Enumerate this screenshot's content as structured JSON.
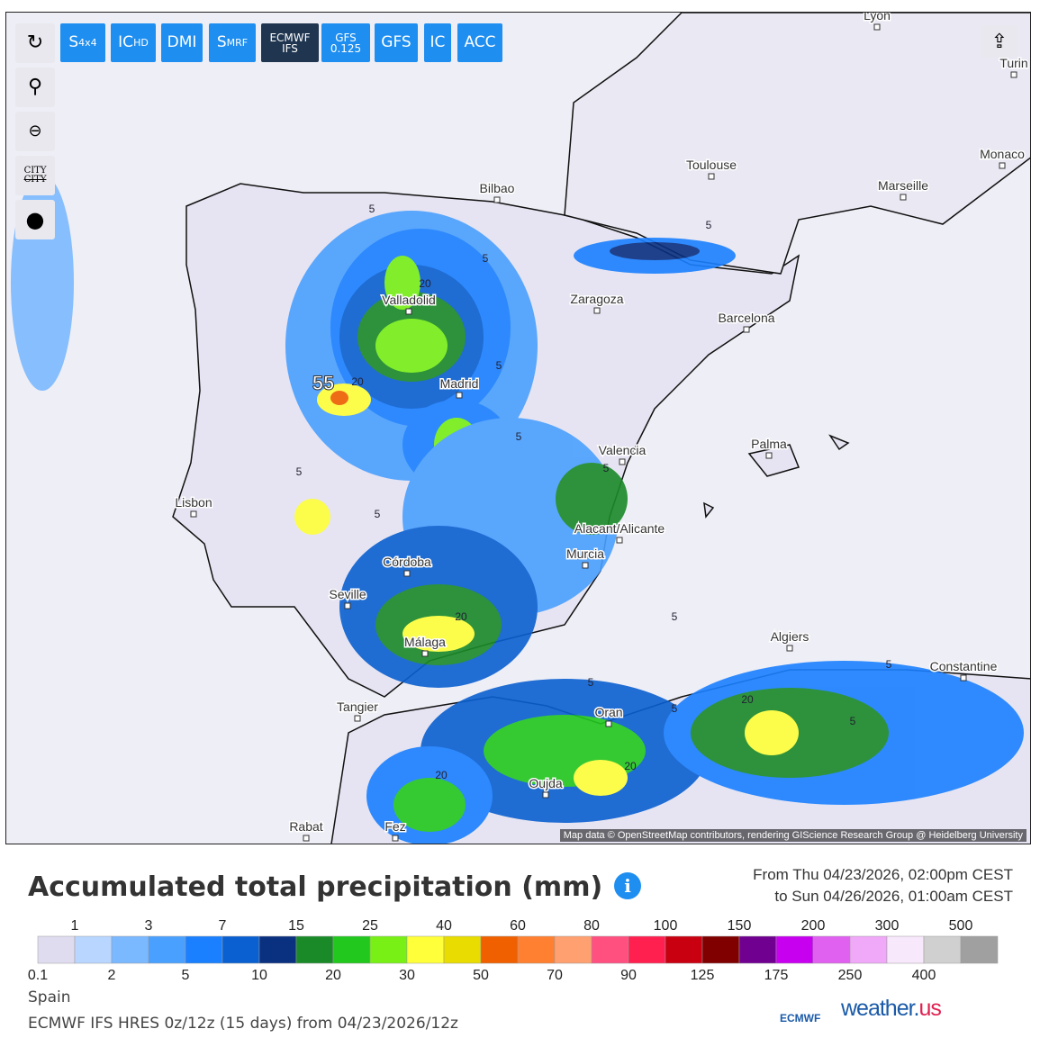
{
  "toolbar": [
    {
      "main": "S",
      "sub": "4x4"
    },
    {
      "main": "IC",
      "sub": "HD"
    },
    {
      "main": "DMI",
      "sub": ""
    },
    {
      "main": "S",
      "sub": "MRF"
    },
    {
      "main": "ECMWF",
      "sub": "IFS"
    },
    {
      "main": "GFS",
      "sub": "0.125"
    },
    {
      "main": "GFS",
      "sub": ""
    },
    {
      "main": "IC",
      "sub": ""
    },
    {
      "main": "ACC",
      "sub": ""
    }
  ],
  "side_buttons": {
    "city_on": "CITY",
    "city_off": "CITY"
  },
  "map": {
    "cities": [
      "Lyon",
      "Turin",
      "Toulouse",
      "Monaco",
      "Marseille",
      "Bilbao",
      "Zaragoza",
      "Barcelona",
      "Valladolid",
      "Madrid",
      "Valencia",
      "Palma",
      "Lisbon",
      "Alacant/Alicante",
      "Murcia",
      "Córdoba",
      "Seville",
      "Málaga",
      "Algiers",
      "Constantine",
      "Tangier",
      "Oran",
      "Oujda",
      "Rabat",
      "Fez"
    ],
    "contour_labels": [
      "5",
      "5",
      "5",
      "5",
      "5",
      "5",
      "5",
      "5",
      "5",
      "5",
      "5",
      "5",
      "5",
      "20",
      "20",
      "20",
      "20",
      "20",
      "20",
      "55"
    ],
    "attribution": "Map data © OpenStreetMap contributors, rendering GIScience Research Group @ Heidelberg University"
  },
  "title": "Accumulated total precipitation (mm)",
  "info": "i",
  "period": {
    "from": "From Thu 04/23/2026, 02:00pm CEST",
    "to": "to Sun 04/26/2026, 01:00am CEST"
  },
  "legend": {
    "top_labels": [
      "1",
      "3",
      "7",
      "15",
      "25",
      "40",
      "60",
      "80",
      "100",
      "150",
      "200",
      "300",
      "500"
    ],
    "bottom_labels": [
      "0.1",
      "2",
      "5",
      "10",
      "20",
      "30",
      "50",
      "70",
      "90",
      "125",
      "175",
      "250",
      "400"
    ],
    "colors": [
      "#e0dcf0",
      "#b8d6ff",
      "#7ab8ff",
      "#4aa0ff",
      "#1a80ff",
      "#0a60d0",
      "#0a3080",
      "#1a8a28",
      "#22c81e",
      "#78f016",
      "#ffff3a",
      "#e8dc00",
      "#f06000",
      "#ff8030",
      "#ffa070",
      "#ff5080",
      "#ff2050",
      "#c80010",
      "#800000",
      "#700090",
      "#c800f0",
      "#e060f0",
      "#f0a8f8",
      "#f8e8fc",
      "#d0d0d0",
      "#a0a0a0"
    ]
  },
  "region": "Spain",
  "model": "ECMWF IFS HRES 0z/12z (15 days) from 04/23/2026/12z",
  "logos": {
    "ecmwf": "ECMWF",
    "weather": "weather.",
    "us": "us"
  }
}
